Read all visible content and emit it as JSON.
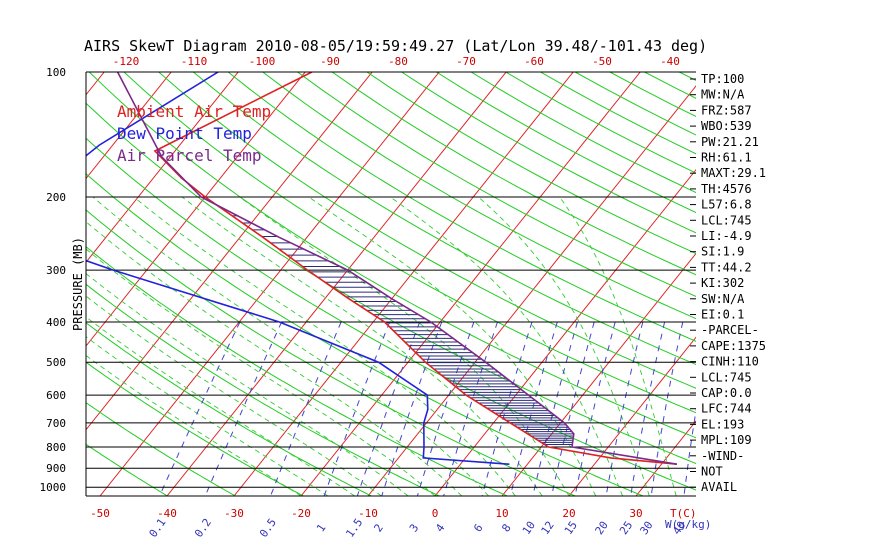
{
  "chart_data": {
    "type": "line",
    "title": "AIRS SkewT Diagram 2010-08-05/19:59:49.27 (Lat/Lon 39.48/-101.43 deg)",
    "ylabel": "PRESSURE (MB)",
    "xlabel": "T(C)",
    "mixing_ratio_unit": "W(g/kg)",
    "p_ticks": [
      100,
      200,
      300,
      400,
      500,
      600,
      700,
      800,
      900,
      1000
    ],
    "t_ticks_bottom": [
      -50,
      -40,
      -30,
      -20,
      -10,
      0,
      10,
      20,
      30
    ],
    "t_ticks_top": [
      -120,
      -110,
      -100,
      -90,
      -80,
      -70,
      -60,
      -50,
      -40
    ],
    "mixing_ratios": [
      "0.1",
      "0.2",
      "0.5",
      "1",
      "1.5",
      "2",
      "3",
      "4",
      "6",
      "8",
      "10",
      "12",
      "15",
      "20",
      "25",
      "30",
      "40"
    ],
    "legend": [
      {
        "label": "Ambient Air Temp",
        "color": "#dd2222"
      },
      {
        "label": "Dew Point Temp",
        "color": "#2222dd"
      },
      {
        "label": "Air Parcel Temp",
        "color": "#7a2a8a"
      }
    ],
    "colors": {
      "isotherm": "#dd2222",
      "dry_adiabat": "#22cc22",
      "moist_adiabat": "#33cc33",
      "mixing_ratio": "#4444cc",
      "isobar": "#000000"
    },
    "series": [
      {
        "name": "Ambient Air Temp",
        "points": [
          [
            100,
            -69
          ],
          [
            155,
            -83
          ],
          [
            180,
            -75.8
          ],
          [
            200,
            -70
          ],
          [
            250,
            -56.6
          ],
          [
            300,
            -46
          ],
          [
            350,
            -36.7
          ],
          [
            400,
            -28.3
          ],
          [
            500,
            -17.4
          ],
          [
            600,
            -7.4
          ],
          [
            700,
            2.5
          ],
          [
            800,
            11.1
          ],
          [
            850,
            21.7
          ],
          [
            880,
            32.3
          ]
        ]
      },
      {
        "name": "Dew Point Temp",
        "points": [
          [
            100,
            -83
          ],
          [
            150,
            -92
          ],
          [
            200,
            -95.5
          ],
          [
            250,
            -93
          ],
          [
            300,
            -75
          ],
          [
            400,
            -44
          ],
          [
            500,
            -24.4
          ],
          [
            600,
            -13.2
          ],
          [
            650,
            -11.4
          ],
          [
            700,
            -10.4
          ],
          [
            800,
            -7.5
          ],
          [
            850,
            -6.3
          ],
          [
            880,
            7.3
          ]
        ]
      },
      {
        "name": "Air Parcel Temp",
        "points": [
          [
            100,
            -98
          ],
          [
            160,
            -81.3
          ],
          [
            200,
            -70.6
          ],
          [
            250,
            -54.2
          ],
          [
            300,
            -40
          ],
          [
            350,
            -30.3
          ],
          [
            400,
            -21.4
          ],
          [
            500,
            -8.4
          ],
          [
            600,
            1.9
          ],
          [
            700,
            10.6
          ],
          [
            744,
            13.3
          ],
          [
            800,
            14.6
          ],
          [
            880,
            32.3
          ]
        ]
      }
    ]
  },
  "indices": [
    "TP:100",
    "MW:N/A",
    "FRZ:587",
    "WBO:539",
    "PW:21.21",
    "RH:61.1",
    "MAXT:29.1",
    "TH:4576",
    "L57:6.8",
    "LCL:745",
    "LI:-4.9",
    "SI:1.9",
    "TT:44.2",
    "KI:302",
    "SW:N/A",
    "EI:0.1",
    "-PARCEL-",
    "CAPE:1375",
    "CINH:110",
    "LCL:745",
    "CAP:0.0",
    "LFC:744",
    "EL:193",
    "MPL:109",
    "-WIND-",
    "NOT",
    "AVAIL"
  ]
}
